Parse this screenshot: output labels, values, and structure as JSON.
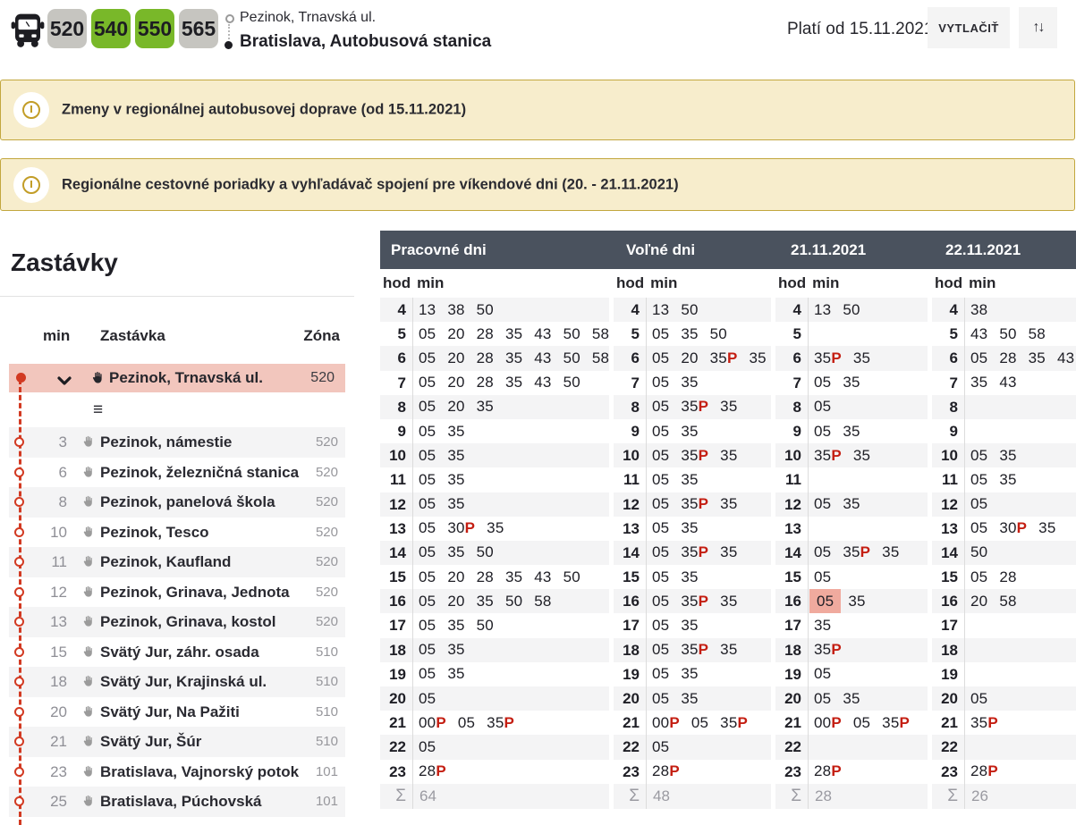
{
  "header": {
    "routes": [
      {
        "number": "520",
        "color": "gray"
      },
      {
        "number": "540",
        "color": "green"
      },
      {
        "number": "550",
        "color": "green"
      },
      {
        "number": "565",
        "color": "gray"
      }
    ],
    "origin": "Pezinok, Trnavská ul.",
    "destination": "Bratislava, Autobusová stanica",
    "valid_from": "Platí od 15.11.2021",
    "print_label": "VYTLAČIŤ",
    "swap_icon": "↑↓"
  },
  "banners": [
    {
      "text": "Zmeny v regionálnej autobusovej doprave (od 15.11.2021)"
    },
    {
      "text": "Regionálne cestovné poriadky a vyhľadávač spojení pre víkendové dni (20. - 21.11.2021)"
    }
  ],
  "stops": {
    "title": "Zastávky",
    "columns": {
      "min": "min",
      "stop": "Zastávka",
      "zone": "Zóna"
    },
    "selected": {
      "name": "Pezinok, Trnavská ul.",
      "zone": "520"
    },
    "expander_glyph": "≡",
    "items": [
      {
        "min": "3",
        "name": "Pezinok, námestie",
        "zone": "520"
      },
      {
        "min": "6",
        "name": "Pezinok, železničná stanica",
        "zone": "520"
      },
      {
        "min": "8",
        "name": "Pezinok, panelová škola",
        "zone": "520"
      },
      {
        "min": "10",
        "name": "Pezinok, Tesco",
        "zone": "520"
      },
      {
        "min": "11",
        "name": "Pezinok, Kaufland",
        "zone": "520"
      },
      {
        "min": "12",
        "name": "Pezinok, Grinava, Jednota",
        "zone": "520"
      },
      {
        "min": "13",
        "name": "Pezinok, Grinava, kostol",
        "zone": "520"
      },
      {
        "min": "15",
        "name": "Svätý Jur, záhr. osada",
        "zone": "510"
      },
      {
        "min": "18",
        "name": "Svätý Jur, Krajinská ul.",
        "zone": "510"
      },
      {
        "min": "20",
        "name": "Svätý Jur, Na Pažiti",
        "zone": "510"
      },
      {
        "min": "21",
        "name": "Svätý Jur, Šúr",
        "zone": "510"
      },
      {
        "min": "23",
        "name": "Bratislava, Vajnorský potok",
        "zone": "101"
      },
      {
        "min": "25",
        "name": "Bratislava, Púchovská",
        "zone": "101"
      }
    ]
  },
  "timetable": {
    "hod_label": "hod",
    "min_label": "min",
    "sigma": "Σ",
    "hours": [
      "4",
      "5",
      "6",
      "7",
      "8",
      "9",
      "10",
      "11",
      "12",
      "13",
      "14",
      "15",
      "16",
      "17",
      "18",
      "19",
      "20",
      "21",
      "22",
      "23"
    ],
    "columns": [
      {
        "title": "Pracovné dni",
        "sum": "64",
        "rows": [
          [
            "13",
            "38",
            "50"
          ],
          [
            "05",
            "20",
            "28",
            "35",
            "43",
            "50",
            "58"
          ],
          [
            "05",
            "20",
            "28",
            "35",
            "43",
            "50",
            "58"
          ],
          [
            "05",
            "20",
            "28",
            "35",
            "43",
            "50"
          ],
          [
            "05",
            "20",
            "35"
          ],
          [
            "05",
            "35"
          ],
          [
            "05",
            "35"
          ],
          [
            "05",
            "35"
          ],
          [
            "05",
            "35"
          ],
          [
            "05",
            "30P",
            "35"
          ],
          [
            "05",
            "35",
            "50"
          ],
          [
            "05",
            "20",
            "28",
            "35",
            "43",
            "50"
          ],
          [
            "05",
            "20",
            "35",
            "50",
            "58"
          ],
          [
            "05",
            "35",
            "50"
          ],
          [
            "05",
            "35"
          ],
          [
            "05",
            "35"
          ],
          [
            "05"
          ],
          [
            "00P",
            "05",
            "35P"
          ],
          [
            "05"
          ],
          [
            "28P"
          ]
        ]
      },
      {
        "title": "Voľné dni",
        "sum": "48",
        "rows": [
          [
            "13",
            "50"
          ],
          [
            "05",
            "35",
            "50"
          ],
          [
            "05",
            "20",
            "35P",
            "35"
          ],
          [
            "05",
            "35"
          ],
          [
            "05",
            "35P",
            "35"
          ],
          [
            "05",
            "35"
          ],
          [
            "05",
            "35P",
            "35"
          ],
          [
            "05",
            "35"
          ],
          [
            "05",
            "35P",
            "35"
          ],
          [
            "05",
            "35"
          ],
          [
            "05",
            "35P",
            "35"
          ],
          [
            "05",
            "35"
          ],
          [
            "05",
            "35P",
            "35"
          ],
          [
            "05",
            "35"
          ],
          [
            "05",
            "35P",
            "35"
          ],
          [
            "05",
            "35"
          ],
          [
            "05",
            "35"
          ],
          [
            "00P",
            "05",
            "35P"
          ],
          [
            "05"
          ],
          [
            "28P"
          ]
        ]
      },
      {
        "title": "21.11.2021",
        "sum": "28",
        "rows": [
          [
            "13",
            "50"
          ],
          [],
          [
            "35P",
            "35"
          ],
          [
            "05",
            "35"
          ],
          [
            "05"
          ],
          [
            "05",
            "35"
          ],
          [
            "35P",
            "35"
          ],
          [],
          [
            "05",
            "35"
          ],
          [],
          [
            "05",
            "35P",
            "35"
          ],
          [
            "05"
          ],
          [
            "05!",
            "35"
          ],
          [
            "35"
          ],
          [
            "35P"
          ],
          [
            "05"
          ],
          [
            "05",
            "35"
          ],
          [
            "00P",
            "05",
            "35P"
          ],
          [],
          [
            "28P"
          ]
        ]
      },
      {
        "title": "22.11.2021",
        "sum": "26",
        "rows": [
          [
            "38"
          ],
          [
            "43",
            "50",
            "58"
          ],
          [
            "05",
            "28",
            "35",
            "43"
          ],
          [
            "35",
            "43"
          ],
          [],
          [],
          [
            "05",
            "35"
          ],
          [
            "05",
            "35"
          ],
          [
            "05"
          ],
          [
            "05",
            "30P",
            "35"
          ],
          [
            "50"
          ],
          [
            "05",
            "28"
          ],
          [
            "20",
            "58"
          ],
          [],
          [],
          [],
          [
            "05"
          ],
          [
            "35P"
          ],
          [],
          [
            "28P"
          ]
        ]
      }
    ]
  },
  "colors": {
    "badge_green": "#79b829",
    "badge_gray": "#c6c5c0",
    "accent_red": "#d23a22",
    "p_red": "#c41e12",
    "selected_row_pink": "#f2c6bd",
    "highlight_cell_pink": "#f0aa9e",
    "timetable_header_dark": "#4a525e",
    "banner_bg": "#f7edcc",
    "banner_border": "#c2a73e"
  }
}
